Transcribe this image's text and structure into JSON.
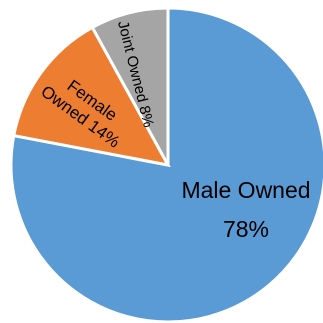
{
  "chart_data": {
    "type": "pie",
    "start_angle_deg": 0,
    "direction": "clockwise",
    "slices": [
      {
        "name": "Male Owned",
        "value": 78,
        "percent_label": "78%",
        "color": "#5b9bd5"
      },
      {
        "name": "Female Owned",
        "value": 14,
        "percent_label": "14%",
        "color": "#ed7d31"
      },
      {
        "name": "Joint Owned",
        "value": 8,
        "percent_label": "8%",
        "color": "#a5a5a5"
      }
    ]
  },
  "labels": {
    "male_line1": "Male Owned",
    "male_line2": "78%",
    "female_line1": "Female",
    "female_line2": "Owned 14%",
    "joint_line1": "Joint Owned 8%"
  }
}
